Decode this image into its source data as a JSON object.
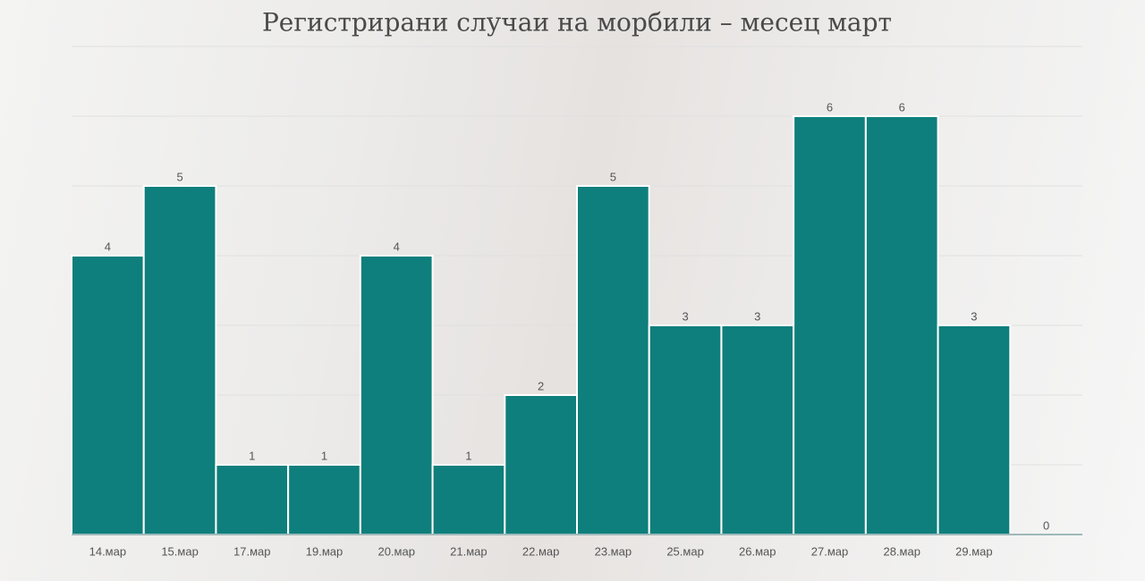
{
  "chart_data": {
    "type": "bar",
    "title": "Регистрирани случаи на морбили – месец март",
    "categories": [
      "14.мар",
      "15.мар",
      "17.мар",
      "19.мар",
      "20.мар",
      "21.мар",
      "22.мар",
      "23.мар",
      "25.мар",
      "26.мар",
      "27.мар",
      "28.мар",
      "29.мар",
      null
    ],
    "values": [
      4,
      5,
      1,
      1,
      4,
      1,
      2,
      5,
      3,
      3,
      6,
      6,
      3,
      0
    ],
    "color": "#0e7f7c",
    "ylim": [
      0,
      7
    ],
    "yticks": [
      0,
      1,
      2,
      3,
      4,
      5,
      6,
      7
    ],
    "grid": true
  }
}
